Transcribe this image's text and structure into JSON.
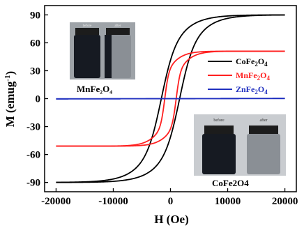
{
  "chart_data": {
    "type": "line",
    "xlabel": "H (Oe)",
    "ylabel_main": "M (emug",
    "ylabel_sup": "-1",
    "ylabel_close": ")",
    "xlim": [
      -22000,
      22000
    ],
    "ylim": [
      -100,
      100
    ],
    "xticks": [
      -20000,
      -10000,
      0,
      10000,
      20000
    ],
    "yticks": [
      -90,
      -60,
      -30,
      0,
      30,
      60,
      90
    ],
    "grid": false,
    "legend_placement": "center-right",
    "series": [
      {
        "name": "CoFe2O4",
        "name_base": "CoFe",
        "name_sub1": "2",
        "name_mid": "O",
        "name_sub2": "4",
        "color": "#000000",
        "ms": 90,
        "coercivity": 1600,
        "width": 2300,
        "slope_width": 5500
      },
      {
        "name": "MnFe2O4",
        "name_base": "MnFe",
        "name_sub1": "2",
        "name_mid": "O",
        "name_sub2": "4",
        "color": "#ff2020",
        "ms": 51,
        "coercivity": 1000,
        "width": 700,
        "slope_width": 3000
      },
      {
        "name": "ZnFe2O4",
        "name_base": "ZnFe",
        "name_sub1": "2",
        "name_mid": "O",
        "name_sub2": "4",
        "color": "#2030c0",
        "ms": 0.3,
        "coercivity": 0,
        "width": 20000,
        "slope_width": 20000
      }
    ],
    "annotations": {
      "photo_left": {
        "before": "before",
        "after": "after",
        "caption": "MnFe₂O₄"
      },
      "photo_right": {
        "before": "before",
        "after": "after",
        "caption": "CoFe2O4"
      }
    }
  },
  "colors": {
    "vial_liquid_dark": "#161a22",
    "vial_liquid_clear": "#8a8f95",
    "photo_background_left": "#9ea3a8",
    "photo_background_right": "#c9ccd0",
    "vial_cap": "#1c1c1c"
  }
}
